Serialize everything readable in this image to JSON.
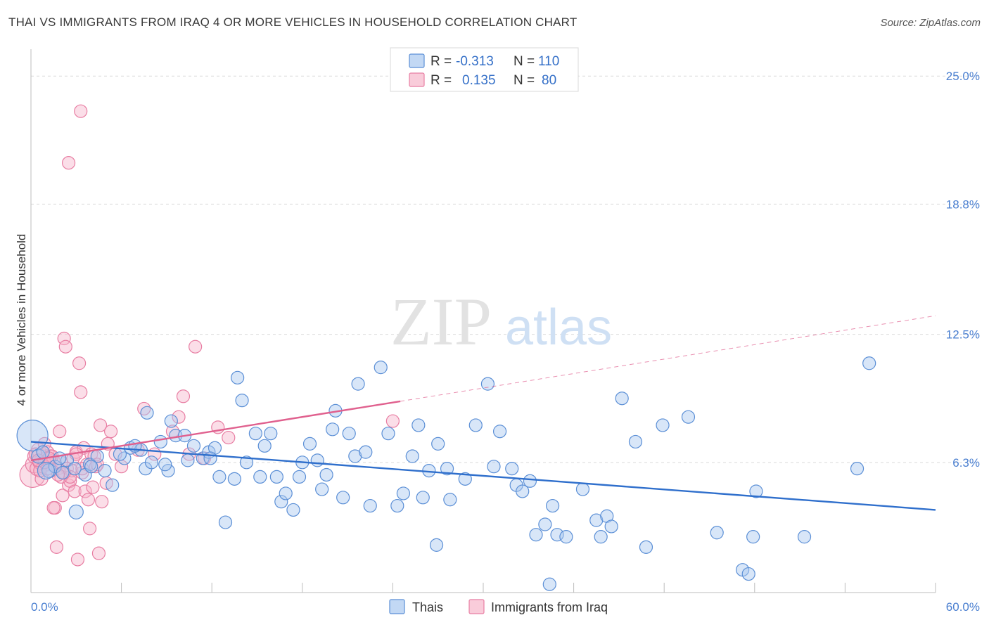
{
  "title": "THAI VS IMMIGRANTS FROM IRAQ 4 OR MORE VEHICLES IN HOUSEHOLD CORRELATION CHART",
  "source": "Source: ZipAtlas.com",
  "watermark": {
    "zip": "ZIP",
    "atlas": "atlas"
  },
  "colors": {
    "thai_fill": "#a8c8f0",
    "thai_stroke": "#5b8fd6",
    "thai_line": "#2f6fcc",
    "iraq_fill": "#f7b6cb",
    "iraq_stroke": "#e87ea3",
    "iraq_line": "#e0608e",
    "tick_label": "#4a7fd0",
    "grid": "#d9d9d9"
  },
  "legend": {
    "rows": [
      {
        "r_label": "R =",
        "r_value": "-0.313",
        "n_label": "N =",
        "n_value": "110",
        "series": "thai"
      },
      {
        "r_label": "R =",
        "r_value": "0.135",
        "n_label": "N =",
        "n_value": "80",
        "series": "iraq"
      }
    ]
  },
  "bottom_legend": {
    "thai": "Thais",
    "iraq": "Immigrants from Iraq"
  },
  "chart_data": {
    "type": "scatter",
    "title": "THAI VS IMMIGRANTS FROM IRAQ 4 OR MORE VEHICLES IN HOUSEHOLD CORRELATION CHART",
    "xlabel": "",
    "ylabel": "4 or more Vehicles in Household",
    "xlim": [
      0,
      60
    ],
    "ylim": [
      0,
      26.3
    ],
    "x_tick_labels": [
      {
        "value": 0,
        "label": "0.0%"
      },
      {
        "value": 60,
        "label": "60.0%"
      }
    ],
    "y_tick_labels": [
      {
        "value": 6.3,
        "label": "6.3%"
      },
      {
        "value": 12.5,
        "label": "12.5%"
      },
      {
        "value": 18.8,
        "label": "18.8%"
      },
      {
        "value": 25.0,
        "label": "25.0%"
      }
    ],
    "grid": true,
    "legend_position": "top-center",
    "series": [
      {
        "name": "Thais",
        "key": "thai",
        "r": -0.313,
        "n": 110,
        "trend": {
          "x": [
            0,
            60
          ],
          "y": [
            7.3,
            4.0
          ],
          "solid_to": 60
        },
        "points": [
          [
            0.1,
            7.6,
            22
          ],
          [
            0.5,
            6.6,
            10
          ],
          [
            0.8,
            6.8,
            9
          ],
          [
            1.2,
            5.9,
            10
          ],
          [
            1.6,
            6.1,
            9
          ],
          [
            2.1,
            5.8,
            9
          ],
          [
            2.4,
            6.4,
            9
          ],
          [
            3.0,
            3.9,
            10
          ],
          [
            3.9,
            6.2,
            9
          ],
          [
            4.4,
            6.6,
            9
          ],
          [
            4.9,
            5.9,
            9
          ],
          [
            5.4,
            5.2,
            9
          ],
          [
            6.2,
            6.5,
            9
          ],
          [
            6.6,
            7.0,
            9
          ],
          [
            7.3,
            6.9,
            9
          ],
          [
            7.6,
            6.0,
            9
          ],
          [
            7.7,
            8.7,
            9
          ],
          [
            8.0,
            6.3,
            9
          ],
          [
            8.6,
            7.3,
            9
          ],
          [
            9.1,
            5.9,
            9
          ],
          [
            9.3,
            8.3,
            9
          ],
          [
            9.6,
            7.6,
            9
          ],
          [
            10.2,
            7.6,
            9
          ],
          [
            10.4,
            6.4,
            9
          ],
          [
            10.8,
            7.1,
            9
          ],
          [
            11.4,
            6.5,
            9
          ],
          [
            11.8,
            6.8,
            9
          ],
          [
            12.2,
            7.0,
            9
          ],
          [
            12.5,
            5.6,
            9
          ],
          [
            12.9,
            3.4,
            9
          ],
          [
            13.5,
            5.5,
            9
          ],
          [
            13.7,
            10.4,
            9
          ],
          [
            14.0,
            9.3,
            9
          ],
          [
            14.3,
            6.3,
            9
          ],
          [
            14.9,
            7.7,
            9
          ],
          [
            15.2,
            5.6,
            9
          ],
          [
            15.5,
            7.1,
            9
          ],
          [
            15.9,
            7.7,
            9
          ],
          [
            16.3,
            5.6,
            9
          ],
          [
            16.6,
            4.4,
            9
          ],
          [
            16.9,
            4.8,
            9
          ],
          [
            17.4,
            4.0,
            9
          ],
          [
            17.8,
            5.6,
            9
          ],
          [
            18.0,
            6.3,
            9
          ],
          [
            18.5,
            7.2,
            9
          ],
          [
            19.0,
            6.4,
            9
          ],
          [
            19.3,
            5.0,
            9
          ],
          [
            19.6,
            5.7,
            9
          ],
          [
            20.0,
            7.9,
            9
          ],
          [
            20.2,
            8.8,
            9
          ],
          [
            20.7,
            4.6,
            9
          ],
          [
            21.1,
            7.7,
            9
          ],
          [
            21.5,
            6.6,
            9
          ],
          [
            21.7,
            10.1,
            9
          ],
          [
            22.2,
            6.8,
            9
          ],
          [
            22.5,
            4.2,
            9
          ],
          [
            23.2,
            10.9,
            9
          ],
          [
            23.7,
            7.7,
            9
          ],
          [
            24.3,
            4.2,
            9
          ],
          [
            24.7,
            4.8,
            9
          ],
          [
            25.3,
            6.6,
            9
          ],
          [
            25.7,
            8.1,
            9
          ],
          [
            26.0,
            4.6,
            9
          ],
          [
            26.4,
            5.9,
            9
          ],
          [
            26.9,
            2.3,
            9
          ],
          [
            27.0,
            7.2,
            9
          ],
          [
            27.6,
            6.0,
            9
          ],
          [
            27.8,
            4.5,
            9
          ],
          [
            28.8,
            5.5,
            9
          ],
          [
            29.5,
            8.1,
            9
          ],
          [
            30.3,
            10.1,
            9
          ],
          [
            30.7,
            6.1,
            9
          ],
          [
            31.1,
            7.8,
            9
          ],
          [
            31.9,
            6.0,
            9
          ],
          [
            32.2,
            5.2,
            9
          ],
          [
            32.6,
            4.9,
            9
          ],
          [
            33.1,
            5.4,
            9
          ],
          [
            33.5,
            2.8,
            9
          ],
          [
            34.1,
            3.3,
            9
          ],
          [
            34.4,
            0.4,
            9
          ],
          [
            34.6,
            4.2,
            9
          ],
          [
            34.9,
            2.8,
            9
          ],
          [
            35.5,
            2.7,
            9
          ],
          [
            36.6,
            5.0,
            9
          ],
          [
            37.5,
            3.5,
            9
          ],
          [
            37.8,
            2.7,
            9
          ],
          [
            38.2,
            3.7,
            9
          ],
          [
            38.5,
            3.2,
            9
          ],
          [
            39.2,
            9.4,
            9
          ],
          [
            40.1,
            7.3,
            9
          ],
          [
            40.8,
            2.2,
            9
          ],
          [
            41.9,
            8.1,
            9
          ],
          [
            43.6,
            8.5,
            9
          ],
          [
            45.5,
            2.9,
            9
          ],
          [
            47.2,
            1.1,
            9
          ],
          [
            47.6,
            0.9,
            9
          ],
          [
            47.9,
            2.7,
            9
          ],
          [
            48.1,
            4.9,
            9
          ],
          [
            51.3,
            2.7,
            9
          ],
          [
            54.8,
            6.0,
            9
          ],
          [
            55.6,
            11.1,
            9
          ],
          [
            2.9,
            6.0,
            9
          ],
          [
            3.6,
            5.7,
            9
          ],
          [
            5.9,
            6.7,
            9
          ],
          [
            6.9,
            7.1,
            9
          ],
          [
            1.0,
            5.9,
            12
          ],
          [
            11.9,
            6.5,
            9
          ],
          [
            8.9,
            6.2,
            9
          ],
          [
            4.0,
            6.1,
            9
          ],
          [
            1.9,
            6.5,
            9
          ]
        ]
      },
      {
        "name": "Immigrants from Iraq",
        "key": "iraq",
        "r": 0.135,
        "n": 80,
        "trend": {
          "x": [
            0,
            60
          ],
          "y": [
            6.4,
            13.4
          ],
          "solid_to": 24.5
        },
        "points": [
          [
            0.1,
            5.7,
            18
          ],
          [
            0.2,
            6.2,
            12
          ],
          [
            0.3,
            6.6,
            11
          ],
          [
            0.4,
            6.0,
            10
          ],
          [
            0.5,
            6.9,
            10
          ],
          [
            0.6,
            6.3,
            10
          ],
          [
            0.7,
            5.5,
            9
          ],
          [
            0.8,
            6.1,
            9
          ],
          [
            0.9,
            7.2,
            9
          ],
          [
            1.0,
            6.5,
            9
          ],
          [
            1.1,
            6.8,
            9
          ],
          [
            1.2,
            6.2,
            9
          ],
          [
            1.3,
            6.6,
            9
          ],
          [
            1.4,
            5.9,
            9
          ],
          [
            1.5,
            6.4,
            9
          ],
          [
            1.6,
            4.1,
            9
          ],
          [
            1.7,
            2.2,
            9
          ],
          [
            1.8,
            6.0,
            9
          ],
          [
            1.9,
            7.8,
            9
          ],
          [
            2.0,
            6.3,
            9
          ],
          [
            2.1,
            4.7,
            9
          ],
          [
            2.2,
            12.3,
            9
          ],
          [
            2.3,
            11.9,
            9
          ],
          [
            2.4,
            6.0,
            9
          ],
          [
            2.5,
            5.2,
            9
          ],
          [
            2.6,
            5.4,
            9
          ],
          [
            2.7,
            5.9,
            9
          ],
          [
            2.8,
            6.5,
            9
          ],
          [
            2.9,
            4.9,
            9
          ],
          [
            3.0,
            6.8,
            9
          ],
          [
            3.1,
            1.6,
            9
          ],
          [
            3.2,
            11.1,
            9
          ],
          [
            3.3,
            9.7,
            9
          ],
          [
            3.4,
            5.8,
            9
          ],
          [
            3.5,
            7.0,
            9
          ],
          [
            3.6,
            4.9,
            9
          ],
          [
            3.7,
            6.2,
            9
          ],
          [
            3.8,
            4.5,
            9
          ],
          [
            3.9,
            3.1,
            9
          ],
          [
            4.0,
            6.7,
            9
          ],
          [
            4.1,
            5.1,
            9
          ],
          [
            4.2,
            6.6,
            9
          ],
          [
            4.3,
            6.1,
            9
          ],
          [
            4.5,
            1.9,
            9
          ],
          [
            4.6,
            8.1,
            9
          ],
          [
            4.7,
            4.4,
            9
          ],
          [
            5.0,
            5.3,
            9
          ],
          [
            5.1,
            7.2,
            9
          ],
          [
            5.3,
            7.8,
            9
          ],
          [
            5.6,
            6.7,
            9
          ],
          [
            6.0,
            6.1,
            9
          ],
          [
            7.1,
            6.9,
            9
          ],
          [
            7.5,
            8.9,
            9
          ],
          [
            8.2,
            6.7,
            9
          ],
          [
            9.4,
            7.8,
            9
          ],
          [
            9.8,
            8.5,
            9
          ],
          [
            10.1,
            9.5,
            9
          ],
          [
            10.5,
            6.7,
            9
          ],
          [
            10.9,
            11.9,
            9
          ],
          [
            11.5,
            6.5,
            9
          ],
          [
            12.4,
            8.0,
            9
          ],
          [
            13.1,
            7.5,
            9
          ],
          [
            3.3,
            23.3,
            9
          ],
          [
            2.5,
            20.8,
            9
          ],
          [
            1.5,
            4.1,
            9
          ],
          [
            2.0,
            5.6,
            9
          ],
          [
            0.3,
            6.7,
            9
          ],
          [
            0.6,
            5.9,
            9
          ],
          [
            1.1,
            6.0,
            9
          ],
          [
            2.6,
            5.6,
            9
          ],
          [
            3.4,
            6.0,
            9
          ],
          [
            4.4,
            6.2,
            9
          ],
          [
            0.9,
            6.3,
            9
          ],
          [
            1.4,
            6.6,
            9
          ],
          [
            24.0,
            8.3,
            9
          ],
          [
            3.0,
            6.7,
            9
          ],
          [
            2.2,
            5.8,
            9
          ],
          [
            1.8,
            5.7,
            9
          ],
          [
            0.5,
            6.4,
            9
          ],
          [
            1.2,
            6.5,
            9
          ]
        ]
      }
    ]
  }
}
